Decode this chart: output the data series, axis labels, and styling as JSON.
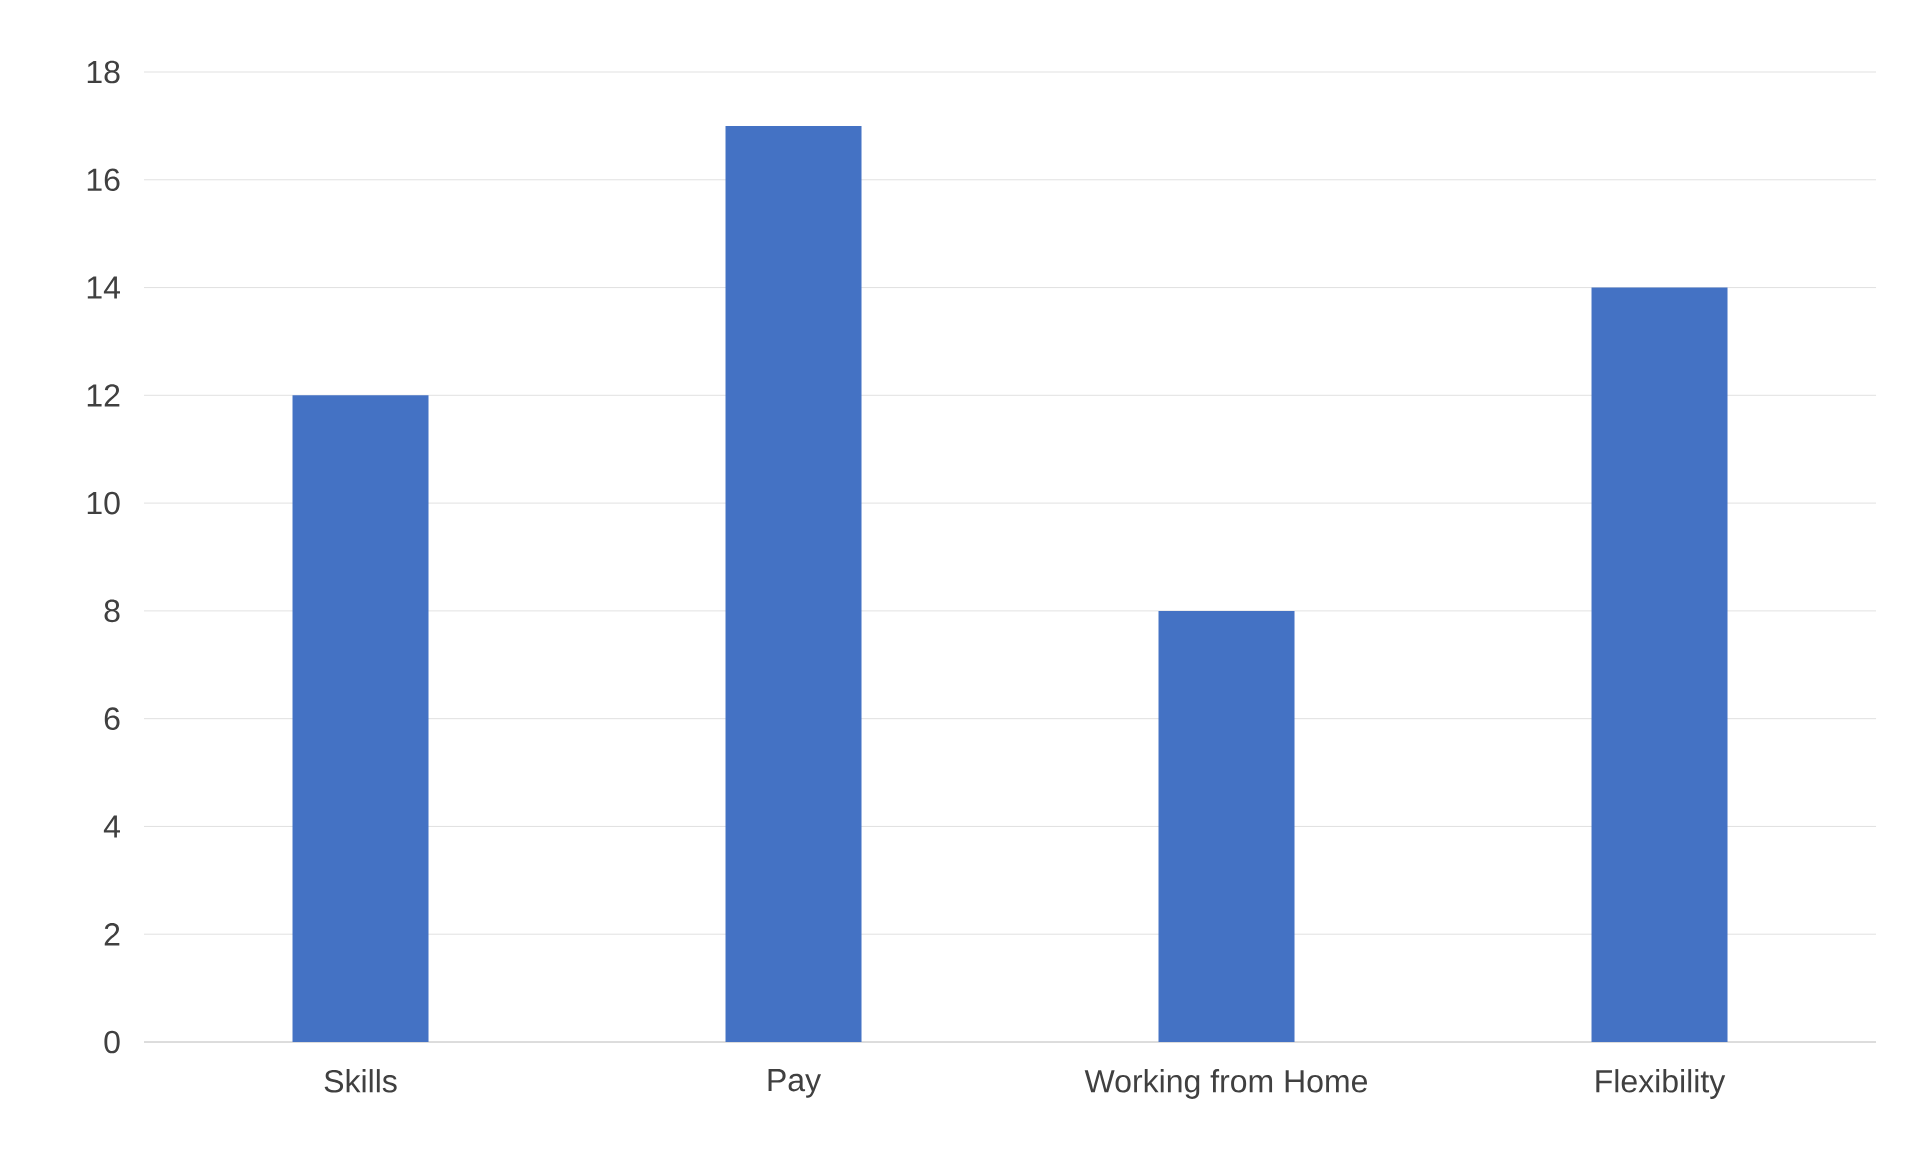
{
  "chart_data": {
    "type": "bar",
    "categories": [
      "Skills",
      "Pay",
      "Working from Home",
      "Flexibility"
    ],
    "values": [
      12,
      17,
      8,
      14
    ],
    "color": "#4472c4",
    "ylim": [
      0,
      18
    ],
    "yticks": [
      0,
      2,
      4,
      6,
      8,
      10,
      12,
      14,
      16,
      18
    ],
    "grid": "y"
  }
}
